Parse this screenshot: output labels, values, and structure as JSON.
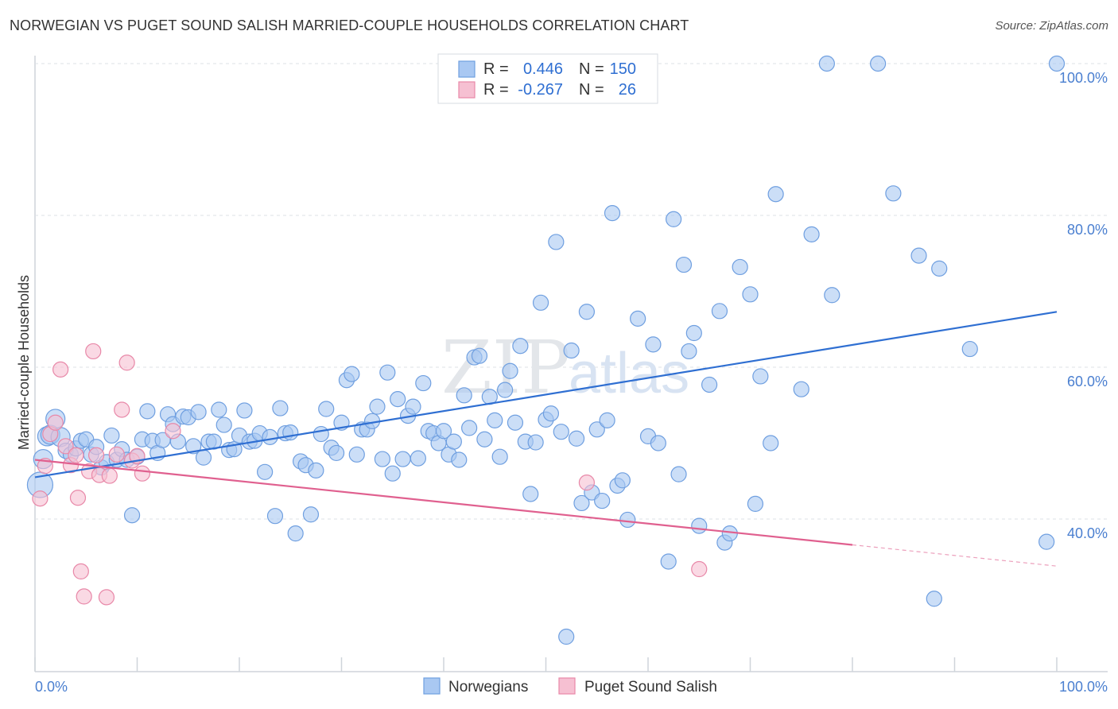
{
  "header": {
    "title": "NORWEGIAN VS PUGET SOUND SALISH MARRIED-COUPLE HOUSEHOLDS CORRELATION CHART",
    "source": "Source: ZipAtlas.com"
  },
  "watermark": "ZIPatlas",
  "chart_data": {
    "type": "scatter",
    "title": "NORWEGIAN VS PUGET SOUND SALISH MARRIED-COUPLE HOUSEHOLDS CORRELATION CHART",
    "xlabel": "",
    "ylabel": "Married-couple Households",
    "xlim": [
      0,
      100
    ],
    "ylim": [
      20,
      100
    ],
    "x_tick_labels": [
      "0.0%",
      "100.0%"
    ],
    "y_ticks": [
      40,
      60,
      80,
      100
    ],
    "y_tick_labels": [
      "40.0%",
      "60.0%",
      "80.0%",
      "100.0%"
    ],
    "grid": true,
    "legend_position": "top-center",
    "stats": [
      {
        "series": "Norwegians",
        "r_label": "R =",
        "r_value": "0.446",
        "n_label": "N =",
        "n_value": "150"
      },
      {
        "series": "Puget Sound Salish",
        "r_label": "R =",
        "r_value": "-0.267",
        "n_label": "N =",
        "n_value": "26"
      }
    ],
    "series": [
      {
        "name": "Norwegians",
        "color": "#6f9fe0",
        "fill": "#a9c8f2",
        "line_color": "#2f6fd2",
        "trend": {
          "x0": 0,
          "y0": 45.5,
          "x1": 100,
          "y1": 67.3
        },
        "points": [
          [
            0.5,
            44.5
          ],
          [
            0.8,
            47.9
          ],
          [
            1.2,
            50.9
          ],
          [
            1.5,
            51.1
          ],
          [
            2.0,
            53.2
          ],
          [
            2.5,
            50.8
          ],
          [
            3.0,
            49.0
          ],
          [
            3.5,
            48.5
          ],
          [
            4.0,
            49.3
          ],
          [
            4.5,
            50.3
          ],
          [
            5.0,
            50.5
          ],
          [
            5.5,
            48.5
          ],
          [
            6.0,
            49.5
          ],
          [
            6.5,
            46.8
          ],
          [
            7.0,
            47.5
          ],
          [
            7.5,
            51.0
          ],
          [
            8.0,
            47.8
          ],
          [
            8.5,
            49.2
          ],
          [
            9.0,
            47.8
          ],
          [
            9.5,
            40.5
          ],
          [
            10.0,
            48.2
          ],
          [
            10.5,
            50.5
          ],
          [
            11.0,
            54.2
          ],
          [
            11.5,
            50.3
          ],
          [
            12.0,
            48.7
          ],
          [
            12.5,
            50.4
          ],
          [
            13.0,
            53.8
          ],
          [
            13.5,
            52.5
          ],
          [
            14.0,
            50.2
          ],
          [
            14.5,
            53.5
          ],
          [
            15.0,
            53.4
          ],
          [
            15.5,
            49.6
          ],
          [
            16.0,
            54.1
          ],
          [
            16.5,
            48.1
          ],
          [
            17.0,
            50.2
          ],
          [
            17.5,
            50.2
          ],
          [
            18.0,
            54.4
          ],
          [
            18.5,
            52.4
          ],
          [
            19.0,
            49.1
          ],
          [
            19.5,
            49.2
          ],
          [
            20.0,
            51.0
          ],
          [
            20.5,
            54.3
          ],
          [
            21.0,
            50.2
          ],
          [
            21.5,
            50.3
          ],
          [
            22.0,
            51.3
          ],
          [
            22.5,
            46.2
          ],
          [
            23.0,
            50.8
          ],
          [
            23.5,
            40.4
          ],
          [
            24.0,
            54.6
          ],
          [
            24.5,
            51.3
          ],
          [
            25.0,
            51.4
          ],
          [
            25.5,
            38.1
          ],
          [
            26.0,
            47.6
          ],
          [
            26.5,
            47.1
          ],
          [
            27.0,
            40.6
          ],
          [
            27.5,
            46.4
          ],
          [
            28.0,
            51.2
          ],
          [
            28.5,
            54.5
          ],
          [
            29.0,
            49.4
          ],
          [
            29.5,
            48.7
          ],
          [
            30.0,
            52.7
          ],
          [
            30.5,
            58.3
          ],
          [
            31.0,
            59.1
          ],
          [
            31.5,
            48.5
          ],
          [
            32.0,
            51.8
          ],
          [
            32.5,
            51.8
          ],
          [
            33.0,
            52.9
          ],
          [
            33.5,
            54.8
          ],
          [
            34.0,
            47.9
          ],
          [
            34.5,
            59.3
          ],
          [
            35.0,
            46.0
          ],
          [
            35.5,
            55.8
          ],
          [
            36.0,
            47.9
          ],
          [
            36.5,
            53.6
          ],
          [
            37.0,
            54.8
          ],
          [
            37.5,
            48.0
          ],
          [
            38.0,
            57.9
          ],
          [
            38.5,
            51.6
          ],
          [
            39.0,
            51.3
          ],
          [
            39.5,
            50.0
          ],
          [
            40.0,
            51.6
          ],
          [
            40.5,
            48.5
          ],
          [
            41.0,
            50.2
          ],
          [
            41.5,
            47.8
          ],
          [
            42.0,
            56.3
          ],
          [
            42.5,
            52.0
          ],
          [
            43.0,
            61.3
          ],
          [
            43.5,
            61.5
          ],
          [
            44.0,
            50.5
          ],
          [
            44.5,
            56.1
          ],
          [
            45.0,
            53.0
          ],
          [
            45.5,
            48.2
          ],
          [
            46.0,
            57.0
          ],
          [
            46.5,
            59.5
          ],
          [
            47.0,
            52.7
          ],
          [
            47.5,
            62.8
          ],
          [
            48.0,
            50.2
          ],
          [
            48.5,
            43.3
          ],
          [
            49.0,
            50.1
          ],
          [
            49.5,
            68.5
          ],
          [
            50.0,
            53.1
          ],
          [
            50.5,
            53.9
          ],
          [
            51.0,
            76.5
          ],
          [
            51.5,
            51.5
          ],
          [
            52.0,
            24.5
          ],
          [
            52.5,
            62.2
          ],
          [
            53.0,
            50.6
          ],
          [
            53.5,
            42.1
          ],
          [
            54.0,
            67.3
          ],
          [
            54.5,
            43.5
          ],
          [
            55.0,
            51.8
          ],
          [
            55.5,
            42.4
          ],
          [
            56.0,
            53.0
          ],
          [
            56.5,
            80.3
          ],
          [
            57.0,
            44.4
          ],
          [
            57.5,
            45.1
          ],
          [
            58.0,
            39.9
          ],
          [
            59.0,
            66.4
          ],
          [
            60.0,
            50.9
          ],
          [
            60.5,
            63.0
          ],
          [
            61.0,
            50.0
          ],
          [
            62.0,
            34.4
          ],
          [
            62.5,
            79.5
          ],
          [
            63.0,
            45.9
          ],
          [
            63.5,
            73.5
          ],
          [
            64.0,
            62.1
          ],
          [
            64.5,
            64.5
          ],
          [
            65.0,
            39.1
          ],
          [
            66.0,
            57.7
          ],
          [
            67.0,
            67.4
          ],
          [
            67.5,
            36.9
          ],
          [
            68.0,
            38.1
          ],
          [
            69.0,
            73.2
          ],
          [
            70.0,
            69.6
          ],
          [
            70.5,
            42.0
          ],
          [
            71.0,
            58.8
          ],
          [
            72.0,
            50.0
          ],
          [
            72.5,
            82.8
          ],
          [
            75.0,
            57.1
          ],
          [
            76.0,
            77.5
          ],
          [
            77.5,
            100.0
          ],
          [
            78.0,
            69.5
          ],
          [
            82.5,
            100.0
          ],
          [
            84.0,
            82.9
          ],
          [
            86.5,
            74.7
          ],
          [
            88.0,
            29.5
          ],
          [
            88.5,
            73.0
          ],
          [
            91.5,
            62.4
          ],
          [
            100.0,
            100.0
          ],
          [
            99.0,
            37.0
          ]
        ]
      },
      {
        "name": "Puget Sound Salish",
        "color": "#e888a8",
        "fill": "#f6c0d2",
        "line_color": "#e0608f",
        "trend": {
          "x0": 0,
          "y0": 47.8,
          "x1": 80,
          "y1": 36.6,
          "dash_x1": 100,
          "dash_y1": 33.8
        },
        "points": [
          [
            0.5,
            42.7
          ],
          [
            1.0,
            47.0
          ],
          [
            1.5,
            51.2
          ],
          [
            2.0,
            52.7
          ],
          [
            2.5,
            59.7
          ],
          [
            3.0,
            49.6
          ],
          [
            3.5,
            47.1
          ],
          [
            4.0,
            48.4
          ],
          [
            4.2,
            42.8
          ],
          [
            4.5,
            33.1
          ],
          [
            4.8,
            29.8
          ],
          [
            5.3,
            46.3
          ],
          [
            5.7,
            62.1
          ],
          [
            6.0,
            48.4
          ],
          [
            6.3,
            45.8
          ],
          [
            7.0,
            29.7
          ],
          [
            7.3,
            45.7
          ],
          [
            8.0,
            48.5
          ],
          [
            8.5,
            54.4
          ],
          [
            9.0,
            60.6
          ],
          [
            9.5,
            47.7
          ],
          [
            10.0,
            48.3
          ],
          [
            10.5,
            46.0
          ],
          [
            13.5,
            51.6
          ],
          [
            54.0,
            44.8
          ],
          [
            65.0,
            33.4
          ]
        ]
      }
    ]
  },
  "legend": {
    "items": [
      {
        "label": "Norwegians"
      },
      {
        "label": "Puget Sound Salish"
      }
    ]
  }
}
